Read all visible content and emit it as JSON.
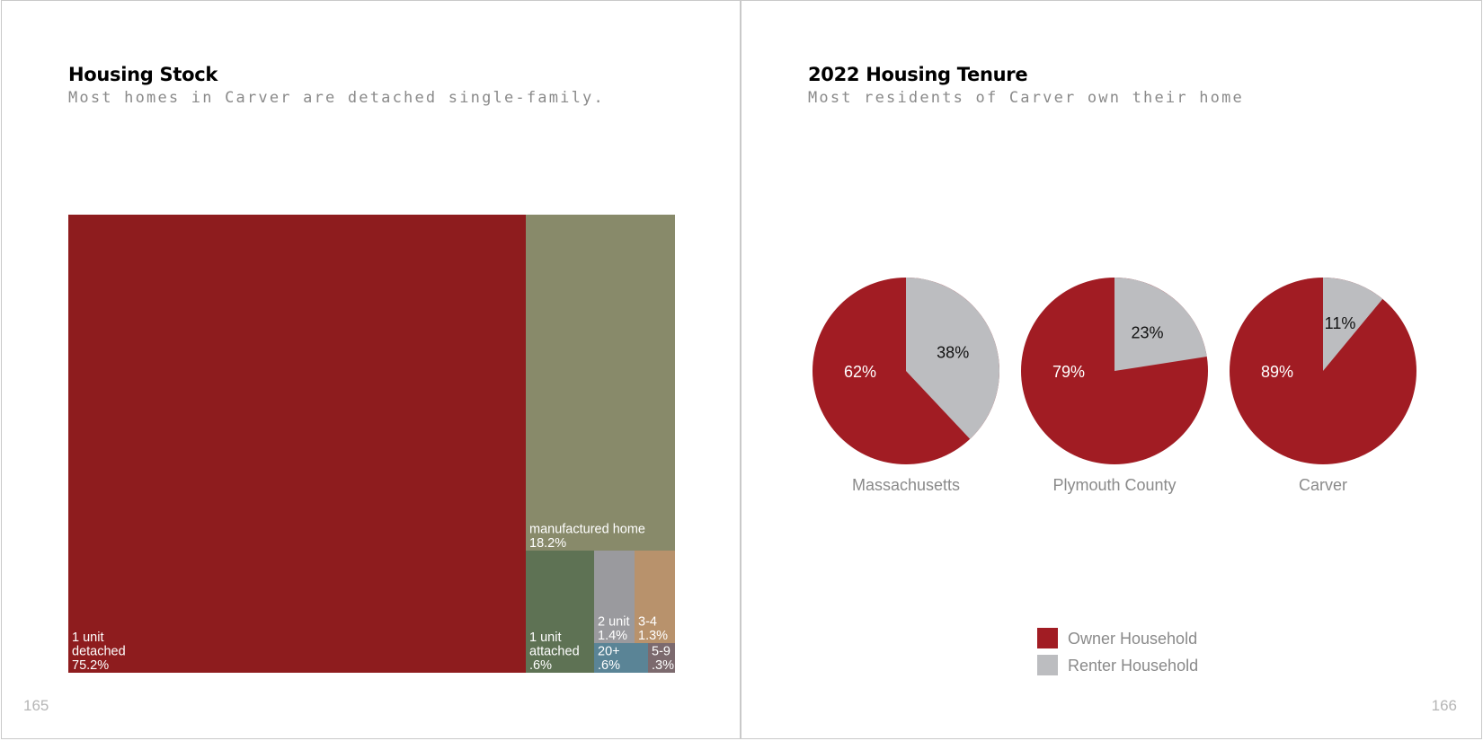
{
  "pages": {
    "left": {
      "number": "165",
      "title": "Housing Stock",
      "subtitle": "Most homes in Carver are detached single-family."
    },
    "right": {
      "number": "166",
      "title": "2022 Housing Tenure",
      "subtitle": "Most residents of Carver own their home"
    }
  },
  "chart_data": [
    {
      "type": "treemap",
      "title": "Housing Stock",
      "items": [
        {
          "name": "1 unit detached",
          "lines": [
            "1 unit",
            "detached",
            "75.2%"
          ],
          "value": 75.2,
          "color": "#8e1c1e"
        },
        {
          "name": "manufactured home",
          "lines": [
            "manufactured home",
            "18.2%"
          ],
          "value": 18.2,
          "color": "#888a6a"
        },
        {
          "name": "1 unit attached",
          "lines": [
            "1 unit",
            "attached",
            ".6%"
          ],
          "value": 0.6,
          "color": "#5e7254"
        },
        {
          "name": "2 unit",
          "lines": [
            "2 unit",
            "1.4%"
          ],
          "value": 1.4,
          "color": "#9a9a9e"
        },
        {
          "name": "3-4",
          "lines": [
            "3-4",
            "1.3%"
          ],
          "value": 1.3,
          "color": "#b8926c"
        },
        {
          "name": "20+",
          "lines": [
            "20+",
            ".6%"
          ],
          "value": 0.6,
          "color": "#5a8496"
        },
        {
          "name": "5-9",
          "lines": [
            "5-9",
            ".3%"
          ],
          "value": 0.3,
          "color": "#7c6a6e"
        }
      ]
    },
    {
      "type": "pie",
      "title": "2022 Housing Tenure",
      "series_names": [
        "Owner Household",
        "Renter Household"
      ],
      "colors": {
        "owner": "#a11c23",
        "renter": "#bcbdc0"
      },
      "pies": [
        {
          "region": "Massachusetts",
          "owner": 62,
          "renter": 38,
          "owner_label": "62%",
          "renter_label": "38%"
        },
        {
          "region": "Plymouth County",
          "owner": 79,
          "renter": 23,
          "owner_label": "79%",
          "renter_label": "23%"
        },
        {
          "region": "Carver",
          "owner": 89,
          "renter": 11,
          "owner_label": "89%",
          "renter_label": "11%"
        }
      ]
    }
  ],
  "legend": [
    {
      "label": "Owner Household",
      "color": "#a11c23"
    },
    {
      "label": "Renter Household",
      "color": "#bcbdc0"
    }
  ]
}
